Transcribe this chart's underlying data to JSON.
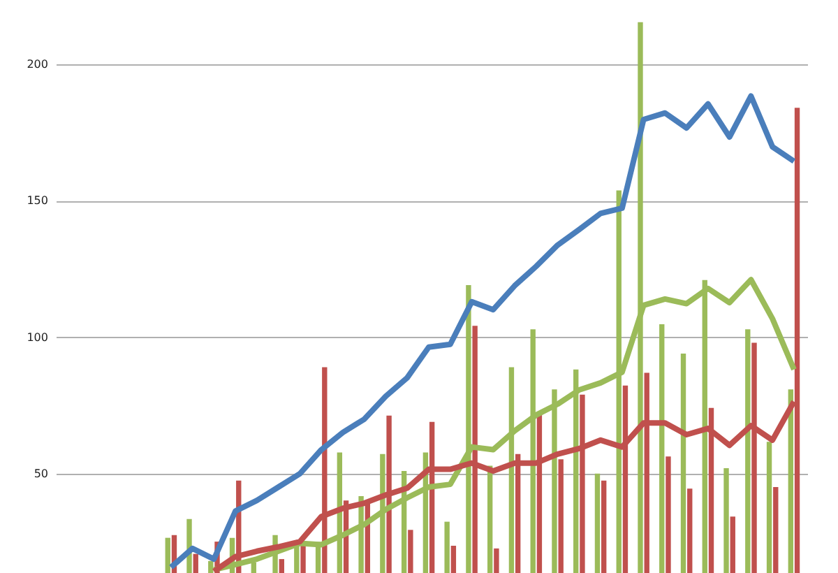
{
  "chart_data": {
    "type": "bar",
    "categories": [
      null,
      null,
      null,
      null,
      null,
      null,
      null,
      null,
      null,
      null,
      null,
      null,
      null,
      null,
      null,
      null,
      null,
      null,
      null,
      null,
      null,
      null,
      null,
      null,
      null,
      null,
      null,
      null,
      null,
      null
    ],
    "series": [
      {
        "color": "#9bbb59",
        "values": [
          26.5,
          33.4,
          18,
          26.5,
          17.5,
          27.5,
          23.6,
          25,
          57.8,
          41.8,
          57.2,
          51,
          57.8,
          32.4,
          119.1,
          52.9,
          89,
          102.9,
          80.9,
          88.2,
          50,
          153.8,
          215.5,
          104.8,
          94,
          121,
          52,
          102.9,
          61.7,
          80.9
        ]
      },
      {
        "color": "#c0504d",
        "values": [
          27.5,
          20.6,
          25.1,
          47.5,
          null,
          18.7,
          23.6,
          89,
          40.2,
          39.2,
          71.3,
          29.4,
          69,
          23.6,
          104.2,
          22.6,
          57.2,
          71.9,
          55.3,
          79,
          47.5,
          82.3,
          87,
          56.3,
          44.5,
          74.1,
          34.3,
          98,
          45.1,
          184.1
        ]
      },
      {
        "type": "line",
        "color": "#4a7ebb",
        "values": [
          15.7,
          22.6,
          18.7,
          36.3,
          40.2,
          45.1,
          50,
          58.8,
          65.1,
          70,
          78.4,
          85.2,
          96.4,
          97.4,
          113,
          110.1,
          118.9,
          126,
          133.8,
          139.5,
          145.4,
          147.3,
          179.8,
          182.2,
          176.7,
          185.5,
          173.4,
          188.4,
          169.8,
          164.5
        ]
      },
      {
        "type": "line",
        "color": "#9bbb59",
        "values": [
          null,
          null,
          14.8,
          16.7,
          18.7,
          21.6,
          24.5,
          24,
          27.5,
          31.4,
          36.9,
          41.2,
          45.1,
          46.1,
          59.8,
          58.8,
          65.7,
          71.5,
          75.5,
          80.7,
          83.3,
          87.2,
          111.7,
          114,
          112.3,
          117.9,
          112.7,
          121.1,
          106.8,
          88.2
        ]
      },
      {
        "type": "line",
        "color": "#c0504d",
        "values": [
          null,
          null,
          14.2,
          19.6,
          21.6,
          23.2,
          25.1,
          34.3,
          37.3,
          39.2,
          42.2,
          44.7,
          51.6,
          51.6,
          53.9,
          51,
          53.9,
          53.9,
          57.2,
          59.2,
          62.3,
          59.8,
          68.6,
          68.6,
          64.3,
          66.6,
          60.4,
          67.6,
          62.3,
          76.4
        ]
      }
    ],
    "ylim": [
      13.6,
      223.6
    ],
    "yticks": [
      50,
      100,
      150,
      200
    ],
    "grid": "y",
    "tick_labels": "y"
  }
}
